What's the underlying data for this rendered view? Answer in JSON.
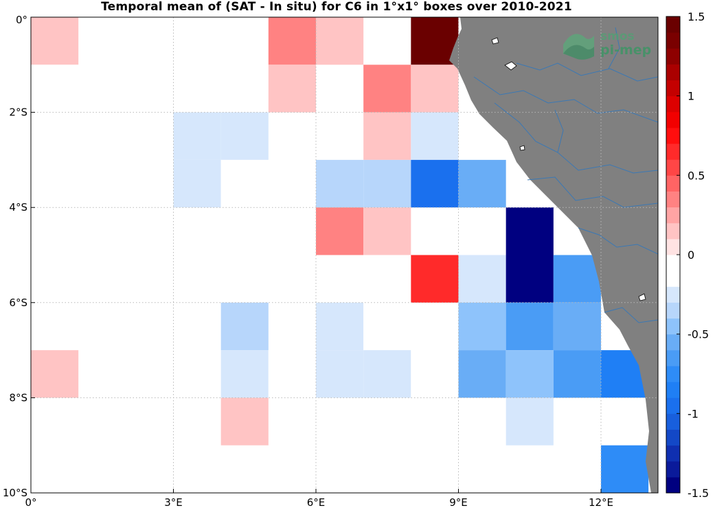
{
  "title": "Temporal mean of (SAT - In situ) for C6 in 1°x1° boxes over 2010-2021",
  "logo": {
    "line1": "smos",
    "line2": "pi-mep"
  },
  "colors": {
    "land": "#808080",
    "river": "#3a78b5",
    "grid": "#b8b8b8",
    "frame": "#000000"
  },
  "chart_data": {
    "type": "heatmap",
    "title": "Temporal mean of (SAT - In situ) for C6 in 1°x1° boxes over 2010-2021",
    "xlim": [
      0,
      13.2
    ],
    "ylim": [
      -10,
      0
    ],
    "x_ticks": [
      0,
      3,
      6,
      9,
      12
    ],
    "y_ticks": [
      0,
      -2,
      -4,
      -6,
      -8,
      -10
    ],
    "x_tick_labels": [
      "0°",
      "3°E",
      "6°E",
      "9°E",
      "12°E"
    ],
    "y_tick_labels": [
      "0°",
      "2°S",
      "4°S",
      "6°S",
      "8°S",
      "10°S"
    ],
    "grid": true,
    "colorbar": {
      "range": [
        -1.5,
        1.5
      ],
      "ticks": [
        1.5,
        1,
        0.5,
        0,
        -0.5,
        -1,
        -1.5
      ],
      "tick_labels": [
        "1.5",
        "1",
        "0.5",
        "0",
        "-0.5",
        "-1",
        "-1.5"
      ],
      "colors": [
        "#000080",
        "#0A1A9A",
        "#0F2FB0",
        "#1348C7",
        "#185FDD",
        "#1A70EE",
        "#1F7FF5",
        "#2E8CF7",
        "#4A9CF5",
        "#69ADF6",
        "#8EC3FB",
        "#B7D6FB",
        "#D6E7FC",
        "#FFFFFF",
        "#FFFFFF",
        "#FFE3E3",
        "#FFC4C4",
        "#FFA4A4",
        "#FF8282",
        "#FF6464",
        "#FF4646",
        "#FF2A2A",
        "#FF0E0E",
        "#F20000",
        "#DD0000",
        "#C40000",
        "#AA0000",
        "#8E0000",
        "#7A0000",
        "#6A0000"
      ]
    },
    "cells": [
      {
        "lon": 0,
        "lat": 0,
        "value": 0.15
      },
      {
        "lon": 2,
        "lat": 0,
        "value": -0.1
      },
      {
        "lon": 5,
        "lat": 0,
        "value": 0.3
      },
      {
        "lon": 6,
        "lat": 0,
        "value": 0.15
      },
      {
        "lon": 8,
        "lat": 0,
        "value": 1.45
      },
      {
        "lon": 0,
        "lat": -1,
        "value": -0.1
      },
      {
        "lon": 3,
        "lat": -1,
        "value": -0.1
      },
      {
        "lon": 5,
        "lat": -1,
        "value": 0.15
      },
      {
        "lon": 7,
        "lat": -1,
        "value": 0.3
      },
      {
        "lon": 8,
        "lat": -1,
        "value": 0.15
      },
      {
        "lon": 2,
        "lat": -2,
        "value": -0.1
      },
      {
        "lon": 3,
        "lat": -2,
        "value": -0.25
      },
      {
        "lon": 4,
        "lat": -2,
        "value": -0.25
      },
      {
        "lon": 7,
        "lat": -2,
        "value": 0.15
      },
      {
        "lon": 8,
        "lat": -2,
        "value": -0.25
      },
      {
        "lon": 3,
        "lat": -3,
        "value": -0.25
      },
      {
        "lon": 4,
        "lat": -3,
        "value": -0.1
      },
      {
        "lon": 5,
        "lat": -3,
        "value": -0.1
      },
      {
        "lon": 6,
        "lat": -3,
        "value": -0.35
      },
      {
        "lon": 7,
        "lat": -3,
        "value": -0.35
      },
      {
        "lon": 8,
        "lat": -3,
        "value": -0.9
      },
      {
        "lon": 9,
        "lat": -3,
        "value": -0.6
      },
      {
        "lon": 4,
        "lat": -4,
        "value": -0.1
      },
      {
        "lon": 6,
        "lat": -4,
        "value": 0.3
      },
      {
        "lon": 7,
        "lat": -4,
        "value": 0.15
      },
      {
        "lon": 10,
        "lat": -4,
        "value": -1.5
      },
      {
        "lon": 8,
        "lat": -5,
        "value": 0.6
      },
      {
        "lon": 9,
        "lat": -5,
        "value": -0.25
      },
      {
        "lon": 10,
        "lat": -5,
        "value": -1.5
      },
      {
        "lon": 11,
        "lat": -5,
        "value": -0.7
      },
      {
        "lon": 2,
        "lat": -6,
        "value": -0.1
      },
      {
        "lon": 4,
        "lat": -6,
        "value": -0.4
      },
      {
        "lon": 6,
        "lat": -6,
        "value": -0.25
      },
      {
        "lon": 7,
        "lat": -6,
        "value": -0.1
      },
      {
        "lon": 9,
        "lat": -6,
        "value": -0.5
      },
      {
        "lon": 10,
        "lat": -6,
        "value": -0.7
      },
      {
        "lon": 11,
        "lat": -6,
        "value": -0.55
      },
      {
        "lon": 0,
        "lat": -7,
        "value": 0.15
      },
      {
        "lon": 3,
        "lat": -7,
        "value": -0.1
      },
      {
        "lon": 4,
        "lat": -7,
        "value": -0.25
      },
      {
        "lon": 5,
        "lat": -7,
        "value": -0.1
      },
      {
        "lon": 6,
        "lat": -7,
        "value": -0.25
      },
      {
        "lon": 7,
        "lat": -7,
        "value": -0.25
      },
      {
        "lon": 8,
        "lat": -7,
        "value": -0.1
      },
      {
        "lon": 9,
        "lat": -7,
        "value": -0.6
      },
      {
        "lon": 10,
        "lat": -7,
        "value": -0.5
      },
      {
        "lon": 11,
        "lat": -7,
        "value": -0.7
      },
      {
        "lon": 12,
        "lat": -7,
        "value": -0.85
      },
      {
        "lon": 4,
        "lat": -8,
        "value": 0.15
      },
      {
        "lon": 10,
        "lat": -8,
        "value": -0.25
      },
      {
        "lon": 12,
        "lat": -8,
        "value": -0.1
      },
      {
        "lon": 8,
        "lat": -9,
        "value": -0.1
      },
      {
        "lon": 9,
        "lat": -9,
        "value": -0.1
      },
      {
        "lon": 12,
        "lat": -9,
        "value": -0.75
      }
    ]
  }
}
